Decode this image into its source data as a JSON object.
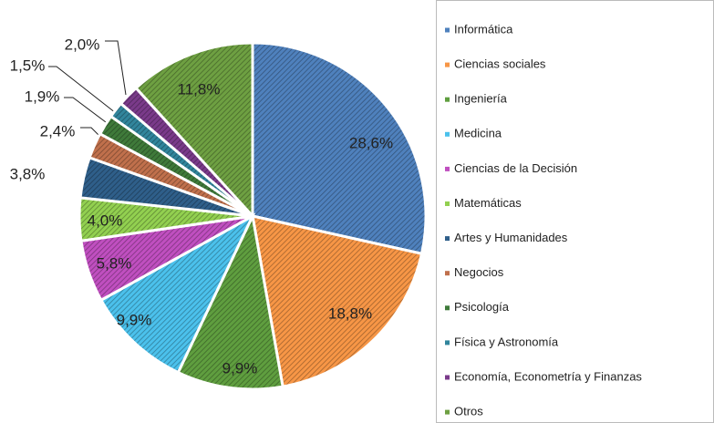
{
  "chart_data": {
    "type": "pie",
    "categories": [
      "Informática",
      "Ciencias sociales",
      "Ingeniería",
      "Medicina",
      "Ciencias de la Decisión",
      "Matemáticas",
      "Artes y Humanidades",
      "Negocios",
      "Psicología",
      "Física y Astronomía",
      "Economía, Econometría y Finanzas",
      "Otros"
    ],
    "values": [
      28.6,
      18.8,
      9.9,
      9.9,
      5.8,
      4.0,
      3.8,
      2.4,
      1.9,
      1.5,
      2.0,
      11.8
    ],
    "value_labels": [
      "28,6%",
      "18,8%",
      "9,9%",
      "9,9%",
      "5,8%",
      "4,0%",
      "3,8%",
      "2,4%",
      "1,9%",
      "1,5%",
      "2,0%",
      "11,8%"
    ],
    "colors": [
      "#4f81bd",
      "#f79646",
      "#5f9e3f",
      "#4bc1ec",
      "#c04fc0",
      "#92d050",
      "#2f5f8a",
      "#c0704c",
      "#3f7a3a",
      "#31859c",
      "#7a3a8a",
      "#6ea042"
    ],
    "legend": "right"
  }
}
